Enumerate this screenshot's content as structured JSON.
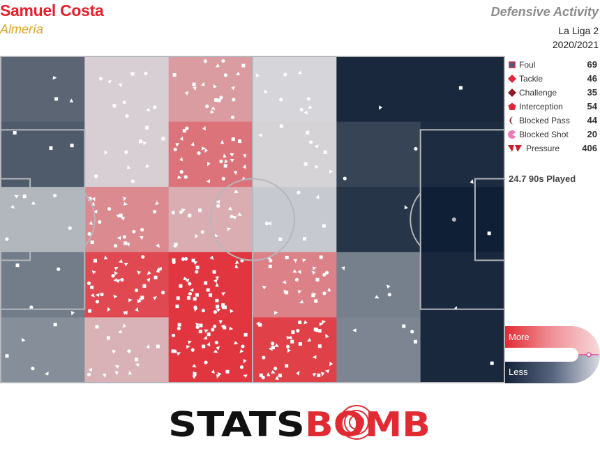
{
  "header": {
    "player": "Samuel Costa",
    "team": "Almería",
    "title": "Defensive Activity",
    "competition": "La Liga 2",
    "season": "2020/2021"
  },
  "legend": [
    {
      "label": "Foul",
      "count": "69",
      "icon": "square-marker"
    },
    {
      "label": "Tackle",
      "count": "46",
      "icon": "diamond-marker"
    },
    {
      "label": "Challenge",
      "count": "35",
      "icon": "diamond-marker"
    },
    {
      "label": "Interception",
      "count": "54",
      "icon": "pentagon-marker"
    },
    {
      "label": "Blocked Pass",
      "count": "44",
      "icon": "crescent-marker"
    },
    {
      "label": "Blocked Shot",
      "count": "20",
      "icon": "pacman-marker"
    },
    {
      "label": "Pressure",
      "count": "406",
      "icon": "chevron-marker"
    }
  ],
  "played": "24.7 90s Played",
  "scale": {
    "more": "More",
    "less": "Less"
  },
  "brand": {
    "part1": "STATS",
    "part2": "BOMB"
  },
  "colors": {
    "hot": "#e22a33",
    "cold": "#0f1f35",
    "neutral": "#d6d8dc",
    "accent": "#e0a428"
  },
  "chart_data": {
    "type": "heatmap",
    "title": "Defensive Activity",
    "columns": 6,
    "rows": 5,
    "attack_direction": "left-to-right",
    "intensity_scale": [
      -1,
      1
    ],
    "cells": [
      [
        -0.62,
        0.05,
        0.35,
        0.02,
        -0.95,
        -0.95
      ],
      [
        -0.68,
        0.05,
        0.58,
        0.03,
        -0.8,
        -0.93
      ],
      [
        -0.18,
        0.45,
        0.25,
        -0.08,
        -0.88,
        -1.0
      ],
      [
        -0.5,
        0.82,
        0.93,
        0.5,
        -0.48,
        -0.95
      ],
      [
        -0.4,
        0.22,
        0.93,
        0.87,
        -0.45,
        -0.95
      ]
    ]
  }
}
